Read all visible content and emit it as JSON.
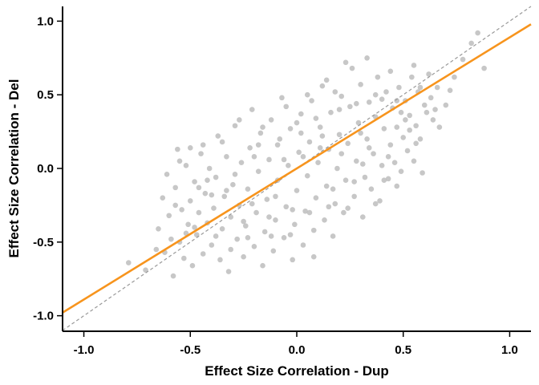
{
  "chart_data": {
    "type": "scatter",
    "title": "",
    "xlabel": "Effect Size Correlation - Dup",
    "ylabel": "Effect Size Correlation - Del",
    "xlim": [
      -1.1,
      1.1
    ],
    "ylim": [
      -1.1,
      1.1
    ],
    "xticks": [
      -1.0,
      -0.5,
      0.0,
      0.5,
      1.0
    ],
    "yticks": [
      -1.0,
      -0.5,
      0.0,
      0.5,
      1.0
    ],
    "xtick_labels": [
      "-1.0",
      "-0.5",
      "0.0",
      "0.5",
      "1.0"
    ],
    "ytick_labels": [
      "-1.0",
      "-0.5",
      "0.0",
      "0.5",
      "1.0"
    ],
    "grid": false,
    "point_color": "#bdbdbd",
    "fit_line": {
      "color": "#f7941d",
      "slope": 0.89,
      "intercept": 0.0
    },
    "identity_line": {
      "color": "#999999",
      "style": "dashed",
      "slope": 1.0,
      "intercept": 0.0
    },
    "points": [
      [
        -0.79,
        -0.64
      ],
      [
        -0.71,
        -0.69
      ],
      [
        -0.66,
        -0.55
      ],
      [
        -0.65,
        -0.41
      ],
      [
        -0.63,
        -0.2
      ],
      [
        -0.61,
        -0.04
      ],
      [
        -0.6,
        -0.32
      ],
      [
        -0.59,
        -0.48
      ],
      [
        -0.58,
        -0.73
      ],
      [
        -0.57,
        -0.13
      ],
      [
        -0.56,
        0.13
      ],
      [
        -0.55,
        -0.5
      ],
      [
        -0.54,
        -0.28
      ],
      [
        -0.53,
        -0.61
      ],
      [
        -0.52,
        0.02
      ],
      [
        -0.51,
        -0.38
      ],
      [
        -0.5,
        0.14
      ],
      [
        -0.5,
        -0.22
      ],
      [
        -0.49,
        -0.66
      ],
      [
        -0.48,
        -0.09
      ],
      [
        -0.47,
        -0.45
      ],
      [
        -0.46,
        -0.3
      ],
      [
        -0.45,
        0.1
      ],
      [
        -0.44,
        -0.58
      ],
      [
        -0.43,
        -0.17
      ],
      [
        -0.42,
        -0.37
      ],
      [
        -0.41,
        0.0
      ],
      [
        -0.4,
        -0.52
      ],
      [
        -0.39,
        -0.27
      ],
      [
        -0.38,
        -0.06
      ],
      [
        -0.37,
        0.22
      ],
      [
        -0.36,
        -0.62
      ],
      [
        -0.35,
        -0.41
      ],
      [
        -0.34,
        -0.19
      ],
      [
        -0.33,
        0.08
      ],
      [
        -0.32,
        -0.7
      ],
      [
        -0.31,
        -0.33
      ],
      [
        -0.3,
        -0.11
      ],
      [
        -0.29,
        0.29
      ],
      [
        -0.28,
        -0.48
      ],
      [
        -0.27,
        -0.25
      ],
      [
        -0.26,
        0.04
      ],
      [
        -0.25,
        -0.6
      ],
      [
        -0.24,
        -0.39
      ],
      [
        -0.23,
        -0.14
      ],
      [
        -0.22,
        0.14
      ],
      [
        -0.21,
        0.4
      ],
      [
        -0.2,
        -0.53
      ],
      [
        -0.19,
        -0.3
      ],
      [
        -0.18,
        -0.02
      ],
      [
        -0.17,
        0.24
      ],
      [
        -0.16,
        -0.66
      ],
      [
        -0.15,
        -0.43
      ],
      [
        -0.14,
        -0.21
      ],
      [
        -0.13,
        0.06
      ],
      [
        -0.12,
        0.33
      ],
      [
        -0.11,
        -0.56
      ],
      [
        -0.1,
        -0.35
      ],
      [
        -0.09,
        -0.08
      ],
      [
        -0.08,
        0.2
      ],
      [
        -0.07,
        0.48
      ],
      [
        -0.06,
        -0.47
      ],
      [
        -0.05,
        -0.26
      ],
      [
        -0.04,
        0.02
      ],
      [
        -0.03,
        0.27
      ],
      [
        -0.02,
        -0.62
      ],
      [
        -0.01,
        -0.38
      ],
      [
        0.0,
        -0.15
      ],
      [
        0.01,
        0.11
      ],
      [
        0.02,
        0.37
      ],
      [
        0.03,
        -0.52
      ],
      [
        0.04,
        -0.29
      ],
      [
        0.05,
        -0.05
      ],
      [
        0.06,
        0.18
      ],
      [
        0.07,
        0.46
      ],
      [
        0.08,
        -0.42
      ],
      [
        0.09,
        -0.2
      ],
      [
        0.1,
        0.04
      ],
      [
        0.11,
        0.28
      ],
      [
        0.12,
        0.56
      ],
      [
        0.13,
        -0.35
      ],
      [
        0.14,
        -0.12
      ],
      [
        0.15,
        0.13
      ],
      [
        0.16,
        0.38
      ],
      [
        0.17,
        -0.46
      ],
      [
        0.18,
        -0.24
      ],
      [
        0.19,
        0.0
      ],
      [
        0.2,
        0.23
      ],
      [
        0.21,
        0.49
      ],
      [
        0.22,
        -0.3
      ],
      [
        0.23,
        -0.08
      ],
      [
        0.24,
        0.17
      ],
      [
        0.25,
        0.42
      ],
      [
        0.26,
        0.68
      ],
      [
        0.27,
        -0.19
      ],
      [
        0.28,
        0.05
      ],
      [
        0.29,
        0.31
      ],
      [
        0.3,
        0.57
      ],
      [
        0.31,
        -0.33
      ],
      [
        0.32,
        -0.06
      ],
      [
        0.33,
        0.2
      ],
      [
        0.34,
        0.45
      ],
      [
        0.35,
        -0.14
      ],
      [
        0.36,
        0.1
      ],
      [
        0.37,
        0.35
      ],
      [
        0.38,
        0.62
      ],
      [
        0.39,
        -0.22
      ],
      [
        0.4,
        0.02
      ],
      [
        0.41,
        0.27
      ],
      [
        0.42,
        0.52
      ],
      [
        0.43,
        -0.07
      ],
      [
        0.44,
        0.16
      ],
      [
        0.45,
        0.41
      ],
      [
        0.46,
        0.04
      ],
      [
        0.47,
        0.28
      ],
      [
        0.48,
        0.55
      ],
      [
        0.49,
        -0.02
      ],
      [
        0.5,
        0.21
      ],
      [
        0.51,
        0.46
      ],
      [
        0.52,
        0.12
      ],
      [
        0.53,
        0.36
      ],
      [
        0.54,
        0.62
      ],
      [
        0.55,
        0.05
      ],
      [
        0.56,
        0.29
      ],
      [
        0.57,
        0.52
      ],
      [
        0.58,
        0.2
      ],
      [
        0.6,
        0.43
      ],
      [
        0.62,
        0.64
      ],
      [
        0.64,
        0.33
      ],
      [
        0.66,
        0.55
      ],
      [
        0.7,
        0.43
      ],
      [
        0.74,
        0.62
      ],
      [
        0.78,
        0.74
      ],
      [
        0.82,
        0.85
      ],
      [
        0.85,
        0.92
      ],
      [
        0.88,
        0.68
      ],
      [
        -0.62,
        -0.57
      ],
      [
        -0.55,
        0.05
      ],
      [
        -0.48,
        -0.4
      ],
      [
        -0.44,
        0.16
      ],
      [
        -0.4,
        -0.18
      ],
      [
        -0.35,
        0.18
      ],
      [
        -0.31,
        -0.55
      ],
      [
        -0.27,
        0.33
      ],
      [
        -0.23,
        -0.47
      ],
      [
        -0.2,
        0.08
      ],
      [
        -0.16,
        0.28
      ],
      [
        -0.12,
        -0.46
      ],
      [
        -0.09,
        0.16
      ],
      [
        -0.05,
        0.42
      ],
      [
        -0.02,
        -0.28
      ],
      [
        0.02,
        0.24
      ],
      [
        0.05,
        0.5
      ],
      [
        0.08,
        -0.6
      ],
      [
        0.11,
        0.14
      ],
      [
        0.14,
        0.6
      ],
      [
        0.17,
        -0.14
      ],
      [
        0.2,
        0.4
      ],
      [
        0.23,
        0.72
      ],
      [
        0.27,
        -0.09
      ],
      [
        0.3,
        0.24
      ],
      [
        0.33,
        0.75
      ],
      [
        0.37,
        -0.24
      ],
      [
        0.4,
        0.47
      ],
      [
        0.44,
        0.66
      ],
      [
        0.47,
        -0.12
      ],
      [
        0.51,
        0.33
      ],
      [
        0.55,
        0.7
      ],
      [
        0.59,
        -0.03
      ],
      [
        0.63,
        0.48
      ],
      [
        0.67,
        0.28
      ],
      [
        0.72,
        0.53
      ],
      [
        -0.57,
        -0.25
      ],
      [
        -0.46,
        -0.13
      ],
      [
        -0.38,
        -0.46
      ],
      [
        -0.29,
        -0.04
      ],
      [
        -0.21,
        -0.24
      ],
      [
        -0.13,
        -0.33
      ],
      [
        -0.06,
        0.06
      ],
      [
        0.0,
        0.31
      ],
      [
        0.06,
        -0.3
      ],
      [
        0.12,
        0.22
      ],
      [
        0.18,
        0.52
      ],
      [
        0.24,
        -0.27
      ],
      [
        0.31,
        0.03
      ],
      [
        0.37,
        0.5
      ],
      [
        0.43,
        0.08
      ],
      [
        0.49,
        0.38
      ],
      [
        0.56,
        0.17
      ],
      [
        0.61,
        0.38
      ],
      [
        -0.52,
        -0.44
      ],
      [
        -0.42,
        -0.08
      ],
      [
        -0.33,
        -0.15
      ],
      [
        -0.25,
        -0.36
      ],
      [
        -0.18,
        0.16
      ],
      [
        -0.1,
        -0.19
      ],
      [
        -0.03,
        -0.45
      ],
      [
        0.03,
        0.08
      ],
      [
        0.09,
        0.34
      ],
      [
        0.15,
        -0.26
      ],
      [
        0.21,
        0.1
      ],
      [
        0.28,
        0.44
      ],
      [
        0.34,
        0.14
      ],
      [
        0.41,
        -0.08
      ],
      [
        0.47,
        0.46
      ],
      [
        0.53,
        0.26
      ],
      [
        0.58,
        0.55
      ],
      [
        0.65,
        0.4
      ]
    ]
  }
}
